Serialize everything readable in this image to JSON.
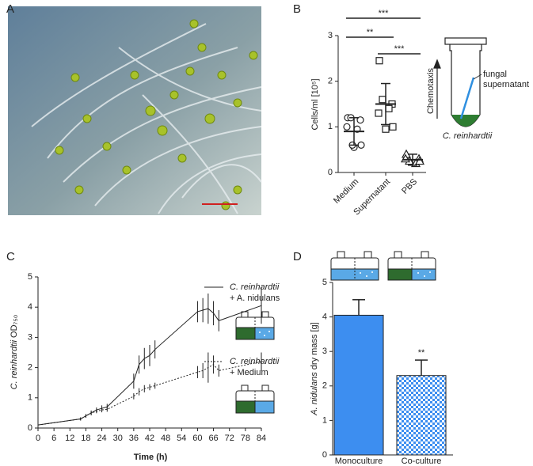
{
  "panel_labels": [
    "A",
    "B",
    "C",
    "D"
  ],
  "diagram_b": {
    "arrow_label": "Chemotaxis",
    "supernatant_lines": [
      "fungal",
      "supernatant"
    ],
    "cells_label": "C. reinhardtii"
  },
  "chart_data": [
    {
      "type": "dot",
      "categories": [
        "Medium",
        "Supernatant",
        "PBS"
      ],
      "points": [
        [
          1.2,
          1.15,
          1.2,
          0.95,
          1.0,
          0.6,
          0.55,
          0.6
        ],
        [
          2.45,
          1.5,
          1.6,
          1.4,
          1.3,
          1.0,
          0.95
        ],
        [
          0.4,
          0.3,
          0.25,
          0.2,
          0.3,
          0.25
        ]
      ],
      "means": [
        0.9,
        1.5,
        0.28
      ],
      "sds": [
        0.3,
        0.45,
        0.12
      ],
      "markers": [
        "circle",
        "square",
        "triangle"
      ],
      "ylabel": "Cells/ml [10⁵]",
      "ylim": [
        0,
        3
      ],
      "yticks": [
        0,
        1,
        2,
        3
      ],
      "significance": [
        {
          "from": 0,
          "to": 2,
          "label": "***"
        },
        {
          "from": 0,
          "to": 1,
          "label": "**"
        },
        {
          "from": 1,
          "to": 2,
          "label": "***"
        }
      ]
    },
    {
      "type": "line",
      "x": [
        0,
        16,
        18,
        20,
        22,
        24,
        26,
        36,
        38,
        40,
        42,
        44,
        60,
        62,
        64,
        66,
        68,
        84
      ],
      "series": [
        {
          "name": "C. reinhardtii + A. nidulans",
          "color": "#222222",
          "dash": "solid",
          "values": [
            0.1,
            0.3,
            0.4,
            0.5,
            0.6,
            0.65,
            0.7,
            1.55,
            2.1,
            2.3,
            2.4,
            2.6,
            3.85,
            3.9,
            3.95,
            3.8,
            3.55,
            4.05
          ],
          "errors": [
            0.02,
            0.05,
            0.06,
            0.08,
            0.08,
            0.1,
            0.1,
            0.25,
            0.3,
            0.35,
            0.35,
            0.3,
            0.35,
            0.4,
            0.5,
            0.4,
            0.35,
            0.6
          ]
        },
        {
          "name": "C. reinhardtii + Medium",
          "color": "#222222",
          "dash": "dotted",
          "values": [
            0.1,
            0.3,
            0.4,
            0.5,
            0.55,
            0.6,
            0.62,
            1.05,
            1.2,
            1.3,
            1.35,
            1.4,
            1.85,
            1.9,
            2.0,
            2.1,
            1.9,
            2.2
          ],
          "errors": [
            0.02,
            0.05,
            0.06,
            0.06,
            0.06,
            0.08,
            0.08,
            0.1,
            0.12,
            0.12,
            0.1,
            0.1,
            0.2,
            0.25,
            0.5,
            0.3,
            0.2,
            0.3
          ]
        }
      ],
      "xlabel": "Time (h)",
      "ylabel": "C. reinhardtii OD₇₅₀",
      "xlim": [
        0,
        84
      ],
      "xticks": [
        0,
        6,
        12,
        18,
        24,
        30,
        36,
        42,
        48,
        54,
        60,
        66,
        72,
        78,
        84
      ],
      "ylim": [
        0,
        5
      ],
      "yticks": [
        0,
        1,
        2,
        3,
        4,
        5
      ]
    },
    {
      "type": "bar",
      "categories": [
        "Monoculture",
        "Co-culture"
      ],
      "values": [
        4.05,
        2.3
      ],
      "errors": [
        0.45,
        0.45
      ],
      "colors": [
        "#3d8ef0",
        "#3d8ef0"
      ],
      "patterns": [
        "solid",
        "checker"
      ],
      "annotations": [
        null,
        "**"
      ],
      "ylabel": "A. nidulans dry mass [g]",
      "ylim": [
        0,
        5
      ],
      "yticks": [
        0,
        1,
        2,
        3,
        4,
        5
      ]
    }
  ]
}
